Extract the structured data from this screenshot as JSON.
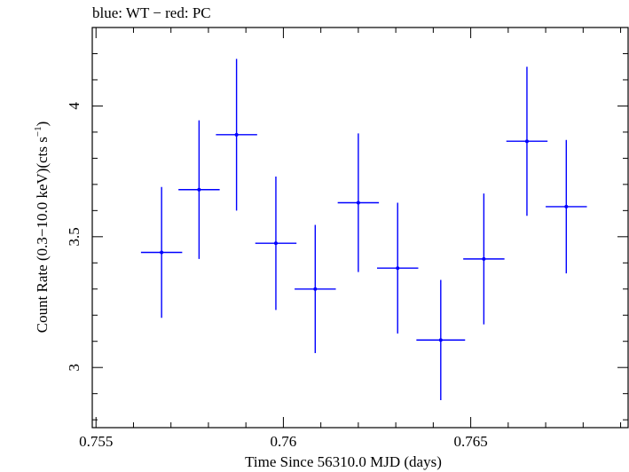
{
  "chart_data": {
    "type": "scatter",
    "title": "blue: WT − red: PC",
    "xlabel": "Time Since 56310.0 MJD (days)",
    "ylabel_main": "Count Rate (0.3−10.0 keV)(cts s",
    "ylabel_sup": "−1",
    "ylabel_end": ")",
    "xlim": [
      0.7549,
      0.7692
    ],
    "ylim": [
      2.77,
      4.3
    ],
    "xticks": [
      {
        "value": 0.755,
        "label": "0.755"
      },
      {
        "value": 0.76,
        "label": "0.76"
      },
      {
        "value": 0.765,
        "label": "0.765"
      }
    ],
    "yticks": [
      {
        "value": 3,
        "label": "3"
      },
      {
        "value": 3.5,
        "label": "3.5"
      },
      {
        "value": 4,
        "label": "4"
      }
    ],
    "grid": false,
    "series": [
      {
        "color": "#0000ff",
        "points": [
          {
            "x": 0.75675,
            "xerr": 0.00055,
            "y": 3.44,
            "yerr": 0.25
          },
          {
            "x": 0.75775,
            "xerr": 0.00055,
            "y": 3.68,
            "yerr": 0.265
          },
          {
            "x": 0.75875,
            "xerr": 0.00055,
            "y": 3.89,
            "yerr": 0.29
          },
          {
            "x": 0.7598,
            "xerr": 0.00055,
            "y": 3.475,
            "yerr": 0.255
          },
          {
            "x": 0.76085,
            "xerr": 0.00055,
            "y": 3.3,
            "yerr": 0.245
          },
          {
            "x": 0.762,
            "xerr": 0.00055,
            "y": 3.63,
            "yerr": 0.265
          },
          {
            "x": 0.76305,
            "xerr": 0.00055,
            "y": 3.38,
            "yerr": 0.25
          },
          {
            "x": 0.7642,
            "xerr": 0.00065,
            "y": 3.105,
            "yerr": 0.23
          },
          {
            "x": 0.76535,
            "xerr": 0.00055,
            "y": 3.415,
            "yerr": 0.25
          },
          {
            "x": 0.7665,
            "xerr": 0.00055,
            "y": 3.865,
            "yerr": 0.285
          },
          {
            "x": 0.76755,
            "xerr": 0.00055,
            "y": 3.615,
            "yerr": 0.255
          }
        ]
      }
    ]
  }
}
